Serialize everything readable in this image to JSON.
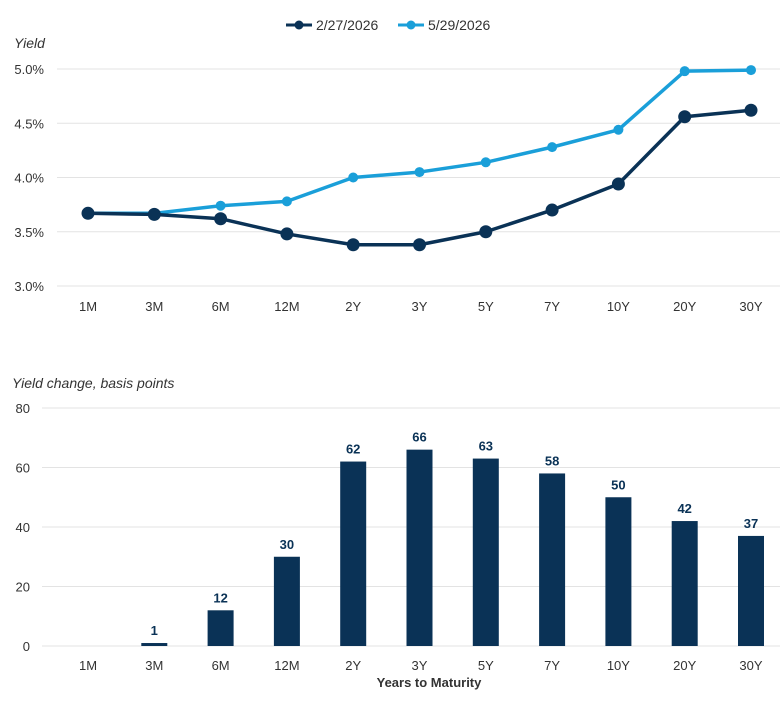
{
  "chart_data": [
    {
      "type": "line",
      "ylabel": "Yield",
      "ylim": [
        3.0,
        5.0
      ],
      "y_ticks": [
        "3.0%",
        "3.5%",
        "4.0%",
        "4.5%",
        "5.0%"
      ],
      "y_tick_values": [
        3.0,
        3.5,
        4.0,
        4.5,
        5.0
      ],
      "categories": [
        "1M",
        "3M",
        "6M",
        "12M",
        "2Y",
        "3Y",
        "5Y",
        "7Y",
        "10Y",
        "20Y",
        "30Y"
      ],
      "grid": true,
      "legend_position": "top-center",
      "series": [
        {
          "name": "2/27/2026",
          "color": "#0a3256",
          "values": [
            3.67,
            3.66,
            3.62,
            3.48,
            3.38,
            3.38,
            3.5,
            3.7,
            3.94,
            4.56,
            4.62
          ]
        },
        {
          "name": "5/29/2026",
          "color": "#1a9fd9",
          "values": [
            3.67,
            3.67,
            3.74,
            3.78,
            4.0,
            4.05,
            4.14,
            4.28,
            4.44,
            4.98,
            4.99
          ]
        }
      ]
    },
    {
      "type": "bar",
      "ylabel": "Yield change, basis points",
      "xlabel": "Years to Maturity",
      "ylim": [
        0,
        80
      ],
      "y_ticks": [
        "0",
        "20",
        "40",
        "60",
        "80"
      ],
      "y_tick_values": [
        0,
        20,
        40,
        60,
        80
      ],
      "categories": [
        "1M",
        "3M",
        "6M",
        "12M",
        "2Y",
        "3Y",
        "5Y",
        "7Y",
        "10Y",
        "20Y",
        "30Y"
      ],
      "values": [
        0,
        1,
        12,
        30,
        62,
        66,
        63,
        58,
        50,
        42,
        37
      ],
      "data_labels": [
        "",
        "1",
        "12",
        "30",
        "62",
        "66",
        "63",
        "58",
        "50",
        "42",
        "37"
      ],
      "color": "#0a3256",
      "grid": true
    }
  ]
}
